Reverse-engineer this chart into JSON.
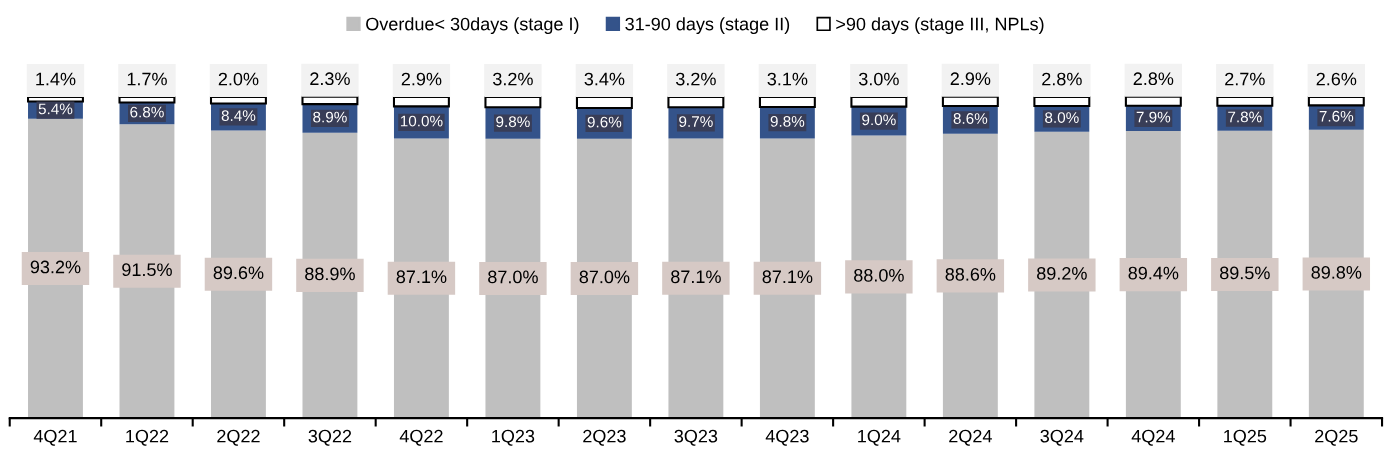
{
  "chart_data": {
    "type": "bar",
    "stacked": true,
    "legend": "top",
    "grid": false,
    "categories": [
      "4Q21",
      "1Q22",
      "2Q22",
      "3Q22",
      "4Q22",
      "1Q23",
      "2Q23",
      "3Q23",
      "4Q23",
      "1Q24",
      "2Q24",
      "3Q24",
      "4Q24",
      "1Q25",
      "2Q25"
    ],
    "series": [
      {
        "name": "Overdue< 30days (stage I)",
        "color": "#bfbfbf",
        "values": [
          93.2,
          91.5,
          89.6,
          88.9,
          87.1,
          87.0,
          87.0,
          87.1,
          87.1,
          88.0,
          88.6,
          89.2,
          89.4,
          89.5,
          89.8
        ],
        "value_labels": [
          "93.2%",
          "91.5%",
          "89.6%",
          "88.9%",
          "87.1%",
          "87.0%",
          "87.0%",
          "87.1%",
          "87.1%",
          "88.0%",
          "88.6%",
          "89.2%",
          "89.4%",
          "89.5%",
          "89.8%"
        ]
      },
      {
        "name": "31-90 days (stage II)",
        "color": "#34538a",
        "values": [
          5.4,
          6.8,
          8.4,
          8.9,
          10.0,
          9.8,
          9.6,
          9.7,
          9.8,
          9.0,
          8.6,
          8.0,
          7.9,
          7.8,
          7.6
        ],
        "value_labels": [
          "5.4%",
          "6.8%",
          "8.4%",
          "8.9%",
          "10.0%",
          "9.8%",
          "9.6%",
          "9.7%",
          "9.8%",
          "9.0%",
          "8.6%",
          "8.0%",
          "7.9%",
          "7.8%",
          "7.6%"
        ]
      },
      {
        "name": ">90 days (stage III, NPLs)",
        "color": "#ffffff",
        "values": [
          1.4,
          1.7,
          2.0,
          2.3,
          2.9,
          3.2,
          3.4,
          3.2,
          3.1,
          3.0,
          2.9,
          2.8,
          2.8,
          2.7,
          2.6
        ],
        "value_labels": [
          "1.4%",
          "1.7%",
          "2.0%",
          "2.3%",
          "2.9%",
          "3.2%",
          "3.4%",
          "3.2%",
          "3.1%",
          "3.0%",
          "2.9%",
          "2.8%",
          "2.8%",
          "2.7%",
          "2.6%"
        ]
      }
    ]
  }
}
